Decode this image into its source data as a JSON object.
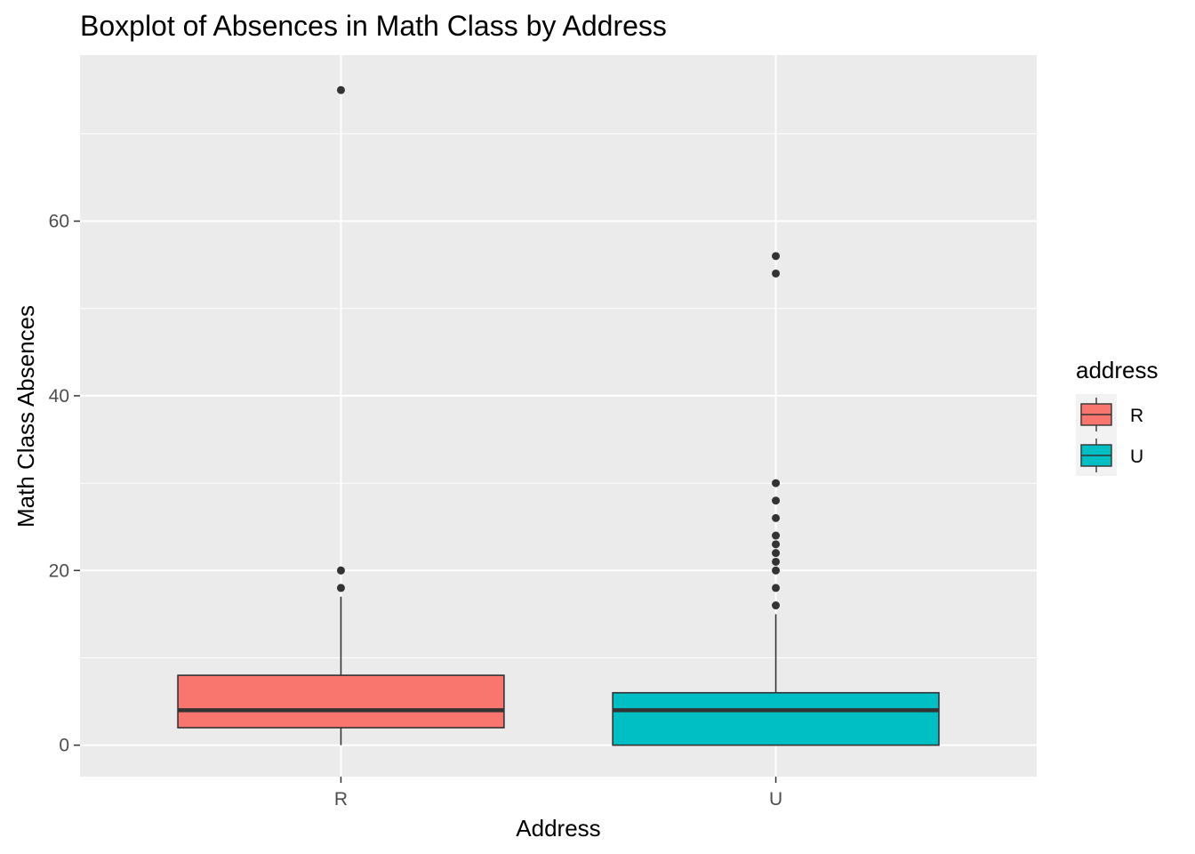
{
  "chart_data": {
    "type": "boxplot",
    "title": "Boxplot of Absences in Math Class by Address",
    "xlabel": "Address",
    "ylabel": "Math Class Absences",
    "ylim": [
      -3.6,
      79
    ],
    "yticks": [
      0,
      20,
      40,
      60
    ],
    "grid": true,
    "legend": {
      "title": "address",
      "placement": "right",
      "entries": [
        "R",
        "U"
      ]
    },
    "categories": [
      "R",
      "U"
    ],
    "boxes": [
      {
        "name": "R",
        "color": "#F8766D",
        "whisker_low": 0,
        "q1": 2,
        "median": 4,
        "q3": 8,
        "whisker_high": 17,
        "outliers": [
          18,
          20,
          75
        ]
      },
      {
        "name": "U",
        "color": "#00BFC4",
        "whisker_low": 0,
        "q1": 0,
        "median": 4,
        "q3": 6,
        "whisker_high": 15,
        "outliers": [
          16,
          18,
          20,
          21,
          22,
          23,
          24,
          26,
          28,
          30,
          54,
          56
        ]
      }
    ],
    "panel_background": "#EBEBEB",
    "point_color": "#333333"
  }
}
